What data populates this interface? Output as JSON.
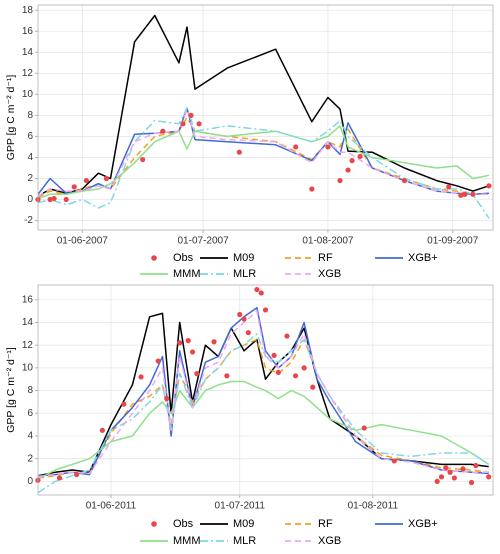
{
  "chart_data": [
    {
      "type": "line",
      "y_label": "GPP [g C m⁻² d⁻¹]",
      "x": [
        "2007-05-21",
        "2007-05-24",
        "2007-05-28",
        "2007-06-01",
        "2007-06-05",
        "2007-06-08",
        "2007-06-14",
        "2007-06-19",
        "2007-06-25",
        "2007-06-27",
        "2007-06-29",
        "2007-07-07",
        "2007-07-19",
        "2007-07-28",
        "2007-08-01",
        "2007-08-04",
        "2007-08-06",
        "2007-08-12",
        "2007-08-20",
        "2007-08-28",
        "2007-09-02",
        "2007-09-06",
        "2007-09-10"
      ],
      "xlim": [
        "2007-05-21",
        "2007-09-11"
      ],
      "xticks": [
        {
          "value": "2007-06-01",
          "label": "01-06-2007"
        },
        {
          "value": "2007-07-01",
          "label": "01-07-2007"
        },
        {
          "value": "2007-08-01",
          "label": "01-08-2007"
        },
        {
          "value": "2007-09-01",
          "label": "01-09-2007"
        }
      ],
      "ylim": [
        -2.9,
        18.5
      ],
      "yticks": [
        -2,
        0,
        2,
        4,
        6,
        8,
        10,
        12,
        14,
        16,
        18
      ],
      "grid": true,
      "legend": "bottom",
      "series": [
        {
          "name": "Obs",
          "type": "scatter",
          "color": "#e8464a",
          "x": [
            "2007-05-21",
            "2007-05-24",
            "2007-05-25",
            "2007-05-28",
            "2007-05-30",
            "2007-06-02",
            "2007-06-07",
            "2007-06-16",
            "2007-06-21",
            "2007-06-26",
            "2007-06-28",
            "2007-06-30",
            "2007-07-10",
            "2007-07-24",
            "2007-07-28",
            "2007-08-01",
            "2007-08-04",
            "2007-08-06",
            "2007-08-07",
            "2007-08-09",
            "2007-08-20",
            "2007-08-31",
            "2007-09-03",
            "2007-09-04",
            "2007-09-06",
            "2007-09-10"
          ],
          "values": [
            0,
            0,
            0.1,
            0,
            1.2,
            1.8,
            2,
            3.8,
            6.5,
            7.2,
            8.0,
            7.2,
            4.5,
            5.0,
            1.0,
            5.0,
            1.8,
            2.8,
            3.7,
            4.1,
            1.8,
            1.2,
            0.4,
            0.5,
            0.5,
            1.3
          ]
        },
        {
          "name": "M09",
          "color": "#000000",
          "dash": "solid",
          "values": [
            0.3,
            1.0,
            0.6,
            1.0,
            2.5,
            2.0,
            15.0,
            17.5,
            13.0,
            16.4,
            10.5,
            12.5,
            14.3,
            7.4,
            9.7,
            8.6,
            4.6,
            4.5,
            3.0,
            1.8,
            1.3,
            0.8,
            1.3
          ]
        },
        {
          "name": "RF",
          "color": "#f5a020",
          "dash": "dashed",
          "values": [
            0.2,
            0.8,
            0.5,
            1.0,
            1.5,
            1.0,
            4.0,
            6.0,
            6.5,
            7.8,
            6.5,
            6.0,
            5.5,
            3.8,
            5.5,
            5.0,
            6.7,
            3.0,
            2.0,
            1.0,
            0.8,
            0.5,
            0.5
          ]
        },
        {
          "name": "XGB+",
          "color": "#3f6bd6",
          "dash": "solid",
          "values": [
            0.5,
            2.0,
            0.6,
            0.8,
            1.5,
            1.0,
            6.2,
            6.3,
            6.5,
            8.7,
            5.7,
            5.5,
            5.2,
            3.7,
            5.5,
            4.3,
            7.3,
            3.0,
            1.8,
            0.8,
            0.6,
            0.5,
            0.6
          ]
        },
        {
          "name": "MMM",
          "color": "#8fe08a",
          "dash": "solid",
          "values": [
            0.1,
            0.5,
            0.5,
            0.8,
            1.0,
            1.5,
            3.5,
            5.5,
            6.5,
            4.8,
            6.5,
            6.0,
            6.5,
            5.5,
            6.0,
            7.0,
            5.0,
            4.0,
            3.5,
            3.0,
            3.2,
            2.0,
            2.3
          ]
        },
        {
          "name": "MLR",
          "color": "#7fd8e6",
          "dash": "dotdash",
          "values": [
            -0.3,
            0.0,
            -0.5,
            0.0,
            -0.8,
            -0.3,
            5.5,
            7.5,
            7.2,
            8.7,
            6.5,
            7.0,
            6.5,
            5.5,
            6.5,
            7.5,
            6.0,
            4.0,
            2.0,
            1.0,
            1.0,
            0.5,
            -1.8
          ]
        },
        {
          "name": "XGB",
          "color": "#f0a6ee",
          "dash": "dashed",
          "values": [
            0.3,
            1.0,
            0.8,
            0.8,
            1.3,
            1.0,
            5.5,
            6.3,
            6.5,
            8.5,
            6.0,
            5.7,
            5.5,
            3.5,
            5.5,
            4.5,
            4.5,
            3.0,
            1.8,
            0.8,
            0.6,
            0.5,
            0.5
          ]
        }
      ]
    },
    {
      "type": "line",
      "y_label": "GPP [g C m⁻² d⁻¹]",
      "x": [
        "2011-05-15",
        "2011-05-19",
        "2011-05-23",
        "2011-05-27",
        "2011-06-01",
        "2011-06-06",
        "2011-06-10",
        "2011-06-13",
        "2011-06-15",
        "2011-06-17",
        "2011-06-20",
        "2011-06-23",
        "2011-06-26",
        "2011-06-29",
        "2011-07-02",
        "2011-07-05",
        "2011-07-07",
        "2011-07-10",
        "2011-07-13",
        "2011-07-16",
        "2011-07-19",
        "2011-07-22",
        "2011-07-28",
        "2011-08-03",
        "2011-08-10",
        "2011-08-17",
        "2011-08-24",
        "2011-08-28"
      ],
      "xlim": [
        "2011-05-15",
        "2011-08-29"
      ],
      "xticks": [
        {
          "value": "2011-06-01",
          "label": "01-06-2011"
        },
        {
          "value": "2011-07-01",
          "label": "01-07-2011"
        },
        {
          "value": "2011-08-01",
          "label": "01-08-2011"
        }
      ],
      "ylim": [
        -1.2,
        17.3
      ],
      "yticks": [
        0,
        2,
        4,
        6,
        8,
        10,
        12,
        14,
        16
      ],
      "grid": true,
      "legend": "bottom",
      "series": [
        {
          "name": "Obs",
          "type": "scatter",
          "color": "#e8464a",
          "x": [
            "2011-05-15",
            "2011-05-20",
            "2011-05-24",
            "2011-05-30",
            "2011-06-04",
            "2011-06-08",
            "2011-06-12",
            "2011-06-14",
            "2011-06-17",
            "2011-06-19",
            "2011-06-20",
            "2011-06-21",
            "2011-06-25",
            "2011-06-28",
            "2011-07-01",
            "2011-07-02",
            "2011-07-03",
            "2011-07-05",
            "2011-07-06",
            "2011-07-07",
            "2011-07-09",
            "2011-07-10",
            "2011-07-12",
            "2011-07-14",
            "2011-07-16",
            "2011-07-18",
            "2011-07-30",
            "2011-08-06",
            "2011-08-16",
            "2011-08-17",
            "2011-08-18",
            "2011-08-19",
            "2011-08-20",
            "2011-08-22",
            "2011-08-24",
            "2011-08-25",
            "2011-08-28"
          ],
          "values": [
            0.1,
            0.3,
            0.6,
            4.5,
            6.8,
            9.2,
            10.6,
            7.3,
            12.2,
            12.4,
            11.4,
            9.5,
            12.3,
            9.3,
            14.7,
            14.3,
            13.1,
            16.9,
            16.6,
            15.1,
            11.1,
            9.6,
            12.8,
            9.3,
            10.0,
            8.3,
            4.7,
            1.8,
            0.0,
            0.4,
            1.2,
            0.8,
            0.3,
            1.1,
            -0.1,
            1.4,
            0.4
          ]
        },
        {
          "name": "M09",
          "color": "#000000",
          "dash": "solid",
          "values": [
            0.5,
            0.8,
            1.0,
            0.8,
            5.0,
            8.5,
            14.5,
            14.8,
            6.0,
            14.0,
            7.0,
            12.0,
            11.0,
            13.5,
            11.5,
            12.5,
            9.0,
            10.5,
            11.5,
            13.5,
            9.0,
            5.5,
            4.0,
            2.0,
            1.8,
            1.5,
            1.5,
            1.3
          ]
        },
        {
          "name": "RF",
          "color": "#f5a020",
          "dash": "dashed",
          "values": [
            0.3,
            0.5,
            0.8,
            0.7,
            4.2,
            6.8,
            7.5,
            8.5,
            5.0,
            9.5,
            7.0,
            9.0,
            10.0,
            11.5,
            12.0,
            12.5,
            10.0,
            9.5,
            10.5,
            12.5,
            9.5,
            7.5,
            4.0,
            2.3,
            1.8,
            1.2,
            1.0,
            0.8
          ]
        },
        {
          "name": "XGB+",
          "color": "#3f6bd6",
          "dash": "solid",
          "values": [
            0.5,
            0.6,
            0.8,
            0.6,
            4.5,
            6.5,
            8.5,
            11.0,
            4.0,
            11.5,
            6.5,
            10.5,
            11.0,
            13.5,
            14.5,
            15.3,
            11.5,
            10.0,
            11.0,
            14.0,
            9.0,
            7.0,
            3.5,
            2.0,
            1.8,
            1.0,
            0.8,
            0.7
          ]
        },
        {
          "name": "MMM",
          "color": "#8fe08a",
          "dash": "solid",
          "values": [
            0.2,
            1.0,
            1.5,
            2.0,
            3.5,
            4.0,
            6.0,
            7.0,
            6.0,
            8.0,
            6.5,
            8.0,
            8.5,
            8.8,
            8.8,
            8.3,
            8.0,
            7.3,
            8.0,
            7.5,
            6.5,
            5.5,
            4.5,
            5.0,
            4.5,
            4.0,
            2.5,
            1.5
          ]
        },
        {
          "name": "MLR",
          "color": "#7fd8e6",
          "dash": "dotdash",
          "values": [
            -1.0,
            0.0,
            0.5,
            1.0,
            4.5,
            5.5,
            7.0,
            8.5,
            4.5,
            9.5,
            6.5,
            9.0,
            10.0,
            11.5,
            12.0,
            13.0,
            11.0,
            10.5,
            11.5,
            12.5,
            9.5,
            7.5,
            4.5,
            2.5,
            2.2,
            2.5,
            2.5,
            1.5
          ]
        },
        {
          "name": "XGB",
          "color": "#f0a6ee",
          "dash": "dashed",
          "values": [
            0.4,
            0.6,
            0.8,
            0.7,
            3.5,
            6.0,
            8.0,
            10.0,
            4.5,
            11.0,
            6.5,
            10.0,
            10.5,
            13.0,
            14.0,
            15.0,
            11.0,
            10.0,
            11.0,
            13.0,
            9.5,
            7.5,
            4.0,
            2.0,
            1.7,
            1.0,
            0.8,
            0.8
          ]
        }
      ]
    }
  ]
}
